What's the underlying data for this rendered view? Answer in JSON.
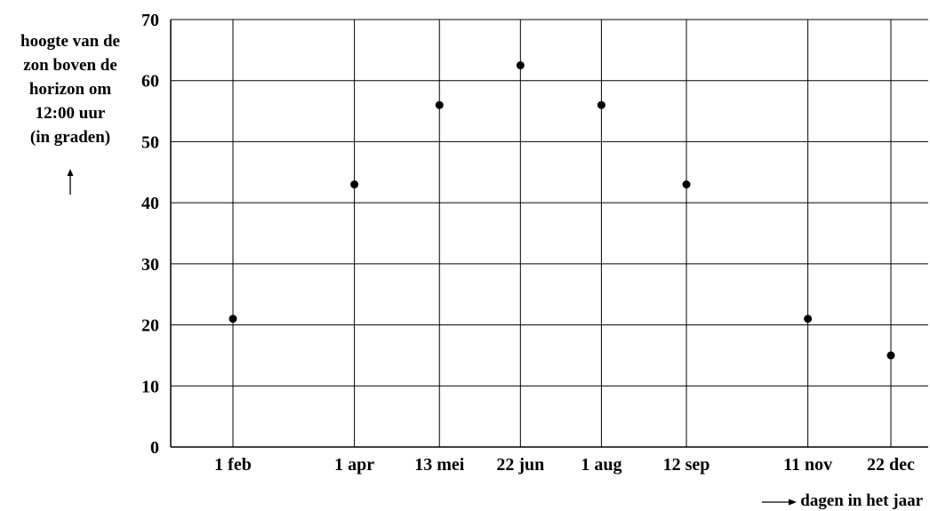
{
  "chart_data": {
    "type": "scatter",
    "ylabel_lines": [
      "hoogte van de",
      "zon boven de",
      "horizon om",
      "12:00 uur",
      "(in graden)"
    ],
    "xlabel": "dagen in het jaar",
    "ylim": [
      0,
      70
    ],
    "yticks": [
      0,
      10,
      20,
      30,
      40,
      50,
      60,
      70
    ],
    "grid": true,
    "points": [
      {
        "x": "2000-02-01",
        "label": "1 feb",
        "y": 21
      },
      {
        "x": "2000-04-01",
        "label": "1 apr",
        "y": 43
      },
      {
        "x": "2000-05-13",
        "label": "13 mei",
        "y": 56
      },
      {
        "x": "2000-06-22",
        "label": "22 jun",
        "y": 62.5
      },
      {
        "x": "2000-08-01",
        "label": "1 aug",
        "y": 56
      },
      {
        "x": "2000-09-12",
        "label": "12 sep",
        "y": 43
      },
      {
        "x": "2000-11-11",
        "label": "11 nov",
        "y": 21
      },
      {
        "x": "2000-12-22",
        "label": "22 dec",
        "y": 15
      }
    ],
    "colors": {
      "axis": "#000000",
      "grid": "#000000",
      "point": "#000000"
    }
  }
}
